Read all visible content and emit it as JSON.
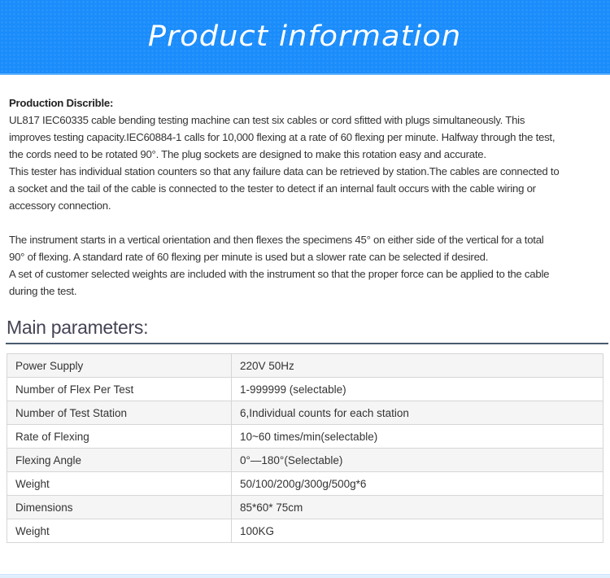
{
  "banner": {
    "title": "Product information",
    "color": "#1a8cfb"
  },
  "description": {
    "heading": "Production Discrible:",
    "paragraph1": [
      "UL817 IEC60335 cable bending testing machine can test six cables or cord sfitted with plugs simultaneously. This",
      "improves testing capacity.IEC60884-1 calls for 10,000 flexing at a rate of 60 flexing per minute. Halfway through the test,",
      "the cords need to be rotated 90°. The plug sockets are designed to make this rotation easy and accurate.",
      "This tester has individual station counters so that any failure data can be retrieved by station.The cables are connected to",
      "a socket and the tail of the cable is connected to the tester to detect if an internal fault occurs with the cable wiring or",
      "accessory connection."
    ],
    "paragraph2": [
      "The instrument starts in a vertical orientation and then flexes the specimens 45° on either side of the vertical for a total",
      "90° of flexing. A standard rate of 60 flexing per minute is used but a slower rate can be selected if desired.",
      "A set of customer selected weights are included with the instrument so that the proper force can be applied to the cable",
      "during the test."
    ]
  },
  "parameters": {
    "title": "Main parameters:",
    "rows": [
      {
        "name": "Power Supply",
        "value": "220V 50Hz"
      },
      {
        "name": "Number of Flex Per Test",
        "value": "1-999999 (selectable)"
      },
      {
        "name": "Number of Test Station",
        "value": "6,Individual counts for each station"
      },
      {
        "name": "Rate of Flexing",
        "value": "10~60 times/min(selectable)"
      },
      {
        "name": "Flexing Angle",
        "value": "0°—180°(Selectable)"
      },
      {
        "name": "Weight",
        "value": "50/100/200g/300g/500g*6"
      },
      {
        "name": "Dimensions",
        "value": "85*60* 75cm"
      },
      {
        "name": "Weight",
        "value": "100KG"
      }
    ]
  }
}
